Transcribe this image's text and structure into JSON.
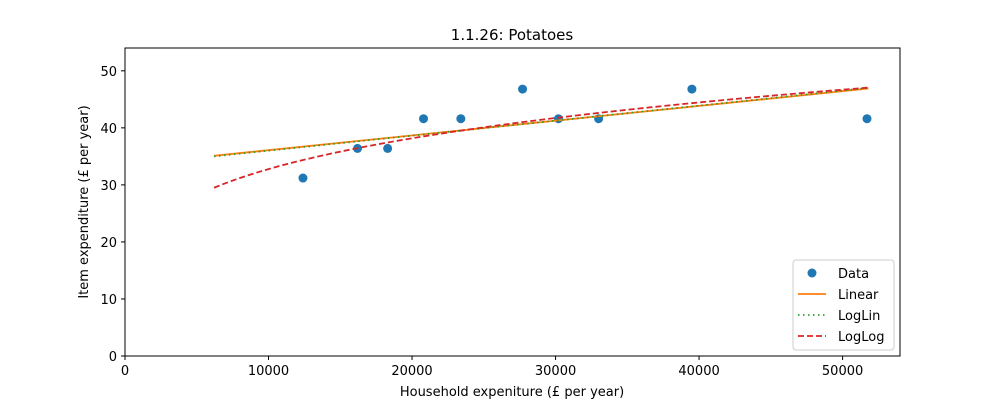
{
  "chart_data": {
    "type": "scatter",
    "title": "1.1.26: Potatoes",
    "xlabel": "Household expeniture (£ per year)",
    "ylabel": "Item expenditure (£ per year)",
    "xlim": [
      0,
      54000
    ],
    "ylim": [
      0,
      54
    ],
    "xticks": [
      0,
      10000,
      20000,
      30000,
      40000,
      50000
    ],
    "yticks": [
      0,
      10,
      20,
      30,
      40,
      50
    ],
    "grid": false,
    "legend_position": "bottom-right",
    "series": [
      {
        "name": "Data",
        "kind": "points",
        "color": "#1f77b4",
        "x": [
          12400,
          16200,
          18300,
          20800,
          23400,
          27700,
          30200,
          33000,
          39500,
          51700
        ],
        "y": [
          31.2,
          36.4,
          36.4,
          41.6,
          41.6,
          46.8,
          41.6,
          41.6,
          46.8,
          41.6
        ]
      },
      {
        "name": "Linear",
        "kind": "line",
        "style": "solid",
        "color": "#ff7f0e",
        "x": [
          6200,
          51800
        ],
        "y": [
          35.1,
          46.9
        ]
      },
      {
        "name": "LogLin",
        "kind": "line",
        "style": "dotted",
        "color": "#2ca02c",
        "x": [
          6200,
          51800
        ],
        "y": [
          35.0,
          47.0
        ]
      },
      {
        "name": "LogLog",
        "kind": "line",
        "style": "dashed",
        "color": "#d62728",
        "x": [
          6200,
          51800
        ],
        "y": [
          29.5,
          47.4
        ],
        "curve_exponent": 0.22
      }
    ]
  }
}
